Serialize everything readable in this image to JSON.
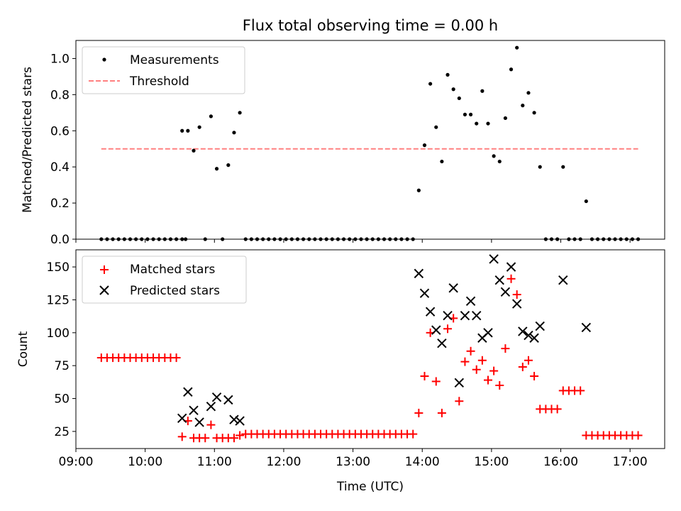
{
  "title": "Flux total observing time = 0.00 h",
  "colors": {
    "measurement": "#000000",
    "threshold": "#ff8080",
    "matched": "#ff0000",
    "predicted": "#000000"
  },
  "chart_data": [
    {
      "type": "scatter",
      "ylabel": "Matched/Predicted stars",
      "ylim": [
        0,
        1.1
      ],
      "yticks": [
        "0.0",
        "0.2",
        "0.4",
        "0.6",
        "0.8",
        "1.0"
      ],
      "xlim": [
        "09:00",
        "17:30"
      ],
      "legend": {
        "placement": "top-left",
        "entries": [
          "Measurements",
          "Threshold"
        ]
      },
      "threshold": {
        "name": "Threshold",
        "value": 0.5,
        "x_range": [
          "09:22",
          "17:07"
        ]
      },
      "series": [
        {
          "name": "Measurements",
          "points": [
            [
              "09:22",
              0
            ],
            [
              "09:27",
              0
            ],
            [
              "09:32",
              0
            ],
            [
              "09:37",
              0
            ],
            [
              "09:42",
              0
            ],
            [
              "09:47",
              0
            ],
            [
              "09:52",
              0
            ],
            [
              "09:57",
              0
            ],
            [
              "10:02",
              0
            ],
            [
              "10:07",
              0
            ],
            [
              "10:12",
              0
            ],
            [
              "10:17",
              0
            ],
            [
              "10:22",
              0
            ],
            [
              "10:27",
              0
            ],
            [
              "10:32",
              0
            ],
            [
              "10:35",
              0
            ],
            [
              "10:32",
              0.6
            ],
            [
              "10:37",
              0.6
            ],
            [
              "10:42",
              0.49
            ],
            [
              "10:47",
              0.62
            ],
            [
              "10:52",
              0
            ],
            [
              "10:57",
              0.68
            ],
            [
              "11:02",
              0.39
            ],
            [
              "11:07",
              0
            ],
            [
              "11:12",
              0.41
            ],
            [
              "11:17",
              0.59
            ],
            [
              "11:22",
              0.7
            ],
            [
              "11:27",
              0
            ],
            [
              "11:32",
              0
            ],
            [
              "11:37",
              0
            ],
            [
              "11:42",
              0
            ],
            [
              "11:47",
              0
            ],
            [
              "11:52",
              0
            ],
            [
              "11:57",
              0
            ],
            [
              "12:02",
              0
            ],
            [
              "12:07",
              0
            ],
            [
              "12:12",
              0
            ],
            [
              "12:17",
              0
            ],
            [
              "12:22",
              0
            ],
            [
              "12:27",
              0
            ],
            [
              "12:32",
              0
            ],
            [
              "12:37",
              0
            ],
            [
              "12:42",
              0
            ],
            [
              "12:47",
              0
            ],
            [
              "12:52",
              0
            ],
            [
              "12:57",
              0
            ],
            [
              "13:02",
              0
            ],
            [
              "13:07",
              0
            ],
            [
              "13:12",
              0
            ],
            [
              "13:17",
              0
            ],
            [
              "13:22",
              0
            ],
            [
              "13:27",
              0
            ],
            [
              "13:32",
              0
            ],
            [
              "13:37",
              0
            ],
            [
              "13:42",
              0
            ],
            [
              "13:47",
              0
            ],
            [
              "13:52",
              0
            ],
            [
              "13:57",
              0.27
            ],
            [
              "14:02",
              0.52
            ],
            [
              "14:07",
              0.86
            ],
            [
              "14:12",
              0.62
            ],
            [
              "14:17",
              0.43
            ],
            [
              "14:22",
              0.91
            ],
            [
              "14:27",
              0.83
            ],
            [
              "14:32",
              0.78
            ],
            [
              "14:37",
              0.69
            ],
            [
              "14:42",
              0.69
            ],
            [
              "14:47",
              0.64
            ],
            [
              "14:52",
              0.82
            ],
            [
              "14:57",
              0.64
            ],
            [
              "15:02",
              0.46
            ],
            [
              "15:07",
              0.43
            ],
            [
              "15:12",
              0.67
            ],
            [
              "15:17",
              0.94
            ],
            [
              "15:22",
              1.06
            ],
            [
              "15:27",
              0.74
            ],
            [
              "15:32",
              0.81
            ],
            [
              "15:37",
              0.7
            ],
            [
              "15:42",
              0.4
            ],
            [
              "15:47",
              0
            ],
            [
              "15:52",
              0
            ],
            [
              "15:57",
              0
            ],
            [
              "16:02",
              0.4
            ],
            [
              "16:07",
              0
            ],
            [
              "16:12",
              0
            ],
            [
              "16:17",
              0
            ],
            [
              "16:22",
              0.21
            ],
            [
              "16:27",
              0
            ],
            [
              "16:32",
              0
            ],
            [
              "16:37",
              0
            ],
            [
              "16:42",
              0
            ],
            [
              "16:47",
              0
            ],
            [
              "16:52",
              0
            ],
            [
              "16:57",
              0
            ],
            [
              "17:02",
              0
            ],
            [
              "17:07",
              0
            ]
          ]
        }
      ]
    },
    {
      "type": "scatter",
      "ylabel": "Count",
      "xlabel": "Time (UTC)",
      "ylim": [
        12,
        163
      ],
      "yticks": [
        "25",
        "50",
        "75",
        "100",
        "125",
        "150"
      ],
      "xlim": [
        "09:00",
        "17:30"
      ],
      "xticks": [
        "09:00",
        "10:00",
        "11:00",
        "12:00",
        "13:00",
        "14:00",
        "15:00",
        "16:00",
        "17:00"
      ],
      "legend": {
        "placement": "top-left",
        "entries": [
          "Matched stars",
          "Predicted stars"
        ]
      },
      "series": [
        {
          "name": "Matched stars",
          "points": [
            [
              "09:22",
              81
            ],
            [
              "09:27",
              81
            ],
            [
              "09:32",
              81
            ],
            [
              "09:37",
              81
            ],
            [
              "09:42",
              81
            ],
            [
              "09:47",
              81
            ],
            [
              "09:52",
              81
            ],
            [
              "09:57",
              81
            ],
            [
              "10:02",
              81
            ],
            [
              "10:07",
              81
            ],
            [
              "10:12",
              81
            ],
            [
              "10:17",
              81
            ],
            [
              "10:22",
              81
            ],
            [
              "10:27",
              81
            ],
            [
              "10:32",
              21
            ],
            [
              "10:37",
              33
            ],
            [
              "10:42",
              20
            ],
            [
              "10:47",
              20
            ],
            [
              "10:52",
              20
            ],
            [
              "10:57",
              30
            ],
            [
              "11:02",
              20
            ],
            [
              "11:07",
              20
            ],
            [
              "11:12",
              20
            ],
            [
              "11:17",
              20
            ],
            [
              "11:22",
              22
            ],
            [
              "11:27",
              23
            ],
            [
              "11:32",
              23
            ],
            [
              "11:37",
              23
            ],
            [
              "11:42",
              23
            ],
            [
              "11:47",
              23
            ],
            [
              "11:52",
              23
            ],
            [
              "11:57",
              23
            ],
            [
              "12:02",
              23
            ],
            [
              "12:07",
              23
            ],
            [
              "12:12",
              23
            ],
            [
              "12:17",
              23
            ],
            [
              "12:22",
              23
            ],
            [
              "12:27",
              23
            ],
            [
              "12:32",
              23
            ],
            [
              "12:37",
              23
            ],
            [
              "12:42",
              23
            ],
            [
              "12:47",
              23
            ],
            [
              "12:52",
              23
            ],
            [
              "12:57",
              23
            ],
            [
              "13:02",
              23
            ],
            [
              "13:07",
              23
            ],
            [
              "13:12",
              23
            ],
            [
              "13:17",
              23
            ],
            [
              "13:22",
              23
            ],
            [
              "13:27",
              23
            ],
            [
              "13:32",
              23
            ],
            [
              "13:37",
              23
            ],
            [
              "13:42",
              23
            ],
            [
              "13:47",
              23
            ],
            [
              "13:52",
              23
            ],
            [
              "13:57",
              39
            ],
            [
              "14:02",
              67
            ],
            [
              "14:07",
              100
            ],
            [
              "14:12",
              63
            ],
            [
              "14:17",
              39
            ],
            [
              "14:22",
              103
            ],
            [
              "14:27",
              111
            ],
            [
              "14:32",
              48
            ],
            [
              "14:37",
              78
            ],
            [
              "14:42",
              86
            ],
            [
              "14:47",
              72
            ],
            [
              "14:52",
              79
            ],
            [
              "14:57",
              64
            ],
            [
              "15:02",
              71
            ],
            [
              "15:07",
              60
            ],
            [
              "15:12",
              88
            ],
            [
              "15:17",
              141
            ],
            [
              "15:22",
              129
            ],
            [
              "15:27",
              74
            ],
            [
              "15:32",
              79
            ],
            [
              "15:37",
              67
            ],
            [
              "15:42",
              42
            ],
            [
              "15:47",
              42
            ],
            [
              "15:52",
              42
            ],
            [
              "15:57",
              42
            ],
            [
              "16:02",
              56
            ],
            [
              "16:07",
              56
            ],
            [
              "16:12",
              56
            ],
            [
              "16:17",
              56
            ],
            [
              "16:22",
              22
            ],
            [
              "16:27",
              22
            ],
            [
              "16:32",
              22
            ],
            [
              "16:37",
              22
            ],
            [
              "16:42",
              22
            ],
            [
              "16:47",
              22
            ],
            [
              "16:52",
              22
            ],
            [
              "16:57",
              22
            ],
            [
              "17:02",
              22
            ],
            [
              "17:07",
              22
            ]
          ]
        },
        {
          "name": "Predicted stars",
          "points": [
            [
              "10:32",
              35
            ],
            [
              "10:37",
              55
            ],
            [
              "10:42",
              41
            ],
            [
              "10:47",
              32
            ],
            [
              "10:57",
              44
            ],
            [
              "11:02",
              51
            ],
            [
              "11:12",
              49
            ],
            [
              "11:17",
              34
            ],
            [
              "11:22",
              33
            ],
            [
              "13:57",
              145
            ],
            [
              "14:02",
              130
            ],
            [
              "14:07",
              116
            ],
            [
              "14:12",
              102
            ],
            [
              "14:17",
              92
            ],
            [
              "14:22",
              113
            ],
            [
              "14:27",
              134
            ],
            [
              "14:32",
              62
            ],
            [
              "14:37",
              113
            ],
            [
              "14:42",
              124
            ],
            [
              "14:47",
              113
            ],
            [
              "14:52",
              96
            ],
            [
              "14:57",
              100
            ],
            [
              "15:02",
              156
            ],
            [
              "15:07",
              140
            ],
            [
              "15:12",
              131
            ],
            [
              "15:17",
              150
            ],
            [
              "15:22",
              122
            ],
            [
              "15:27",
              101
            ],
            [
              "15:32",
              98
            ],
            [
              "15:37",
              96
            ],
            [
              "15:42",
              105
            ],
            [
              "16:02",
              140
            ],
            [
              "16:22",
              104
            ]
          ]
        }
      ]
    }
  ]
}
